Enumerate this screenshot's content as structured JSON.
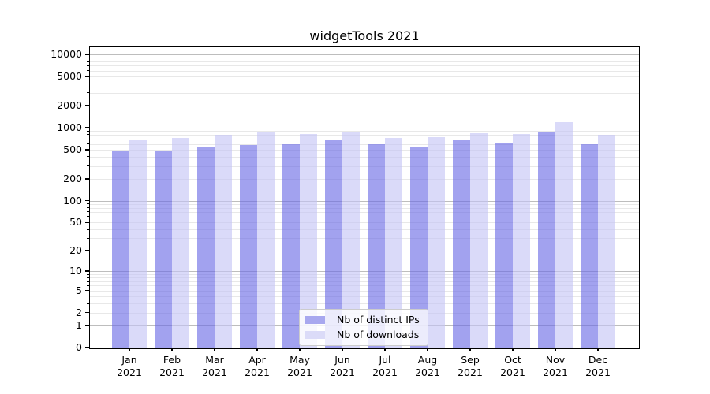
{
  "chart_data": {
    "type": "bar",
    "title": "widgetTools 2021",
    "categories": [
      "Jan",
      "Feb",
      "Mar",
      "Apr",
      "May",
      "Jun",
      "Jul",
      "Aug",
      "Sep",
      "Oct",
      "Nov",
      "Dec"
    ],
    "year_label": "2021",
    "series": [
      {
        "name": "Nb of distinct IPs",
        "solid_color": "#a8a8ef",
        "fill_rgba": "rgba(105,105,229,0.62)",
        "values": [
          500,
          485,
          565,
          600,
          615,
          695,
          605,
          560,
          690,
          625,
          885,
          615
        ]
      },
      {
        "name": "Nb of downloads",
        "solid_color": "#dbdbf8",
        "fill_rgba": "rgba(196,196,245,0.62)",
        "values": [
          685,
          750,
          830,
          880,
          850,
          900,
          735,
          755,
          855,
          840,
          1210,
          815
        ]
      }
    ],
    "y_ticks": [
      0,
      1,
      2,
      5,
      10,
      20,
      50,
      100,
      200,
      500,
      1000,
      2000,
      5000,
      10000
    ],
    "y_scale": "log10(1+y)",
    "y_top": 12500,
    "xlabel": "",
    "ylabel": "",
    "grid": {
      "orientation": "horizontal",
      "major_color": "#bdbdbd",
      "minor_color": "#e8e8e8"
    },
    "axis_color": "#000000",
    "legend": {
      "position": "inside-bottom-center",
      "frame": true
    }
  }
}
